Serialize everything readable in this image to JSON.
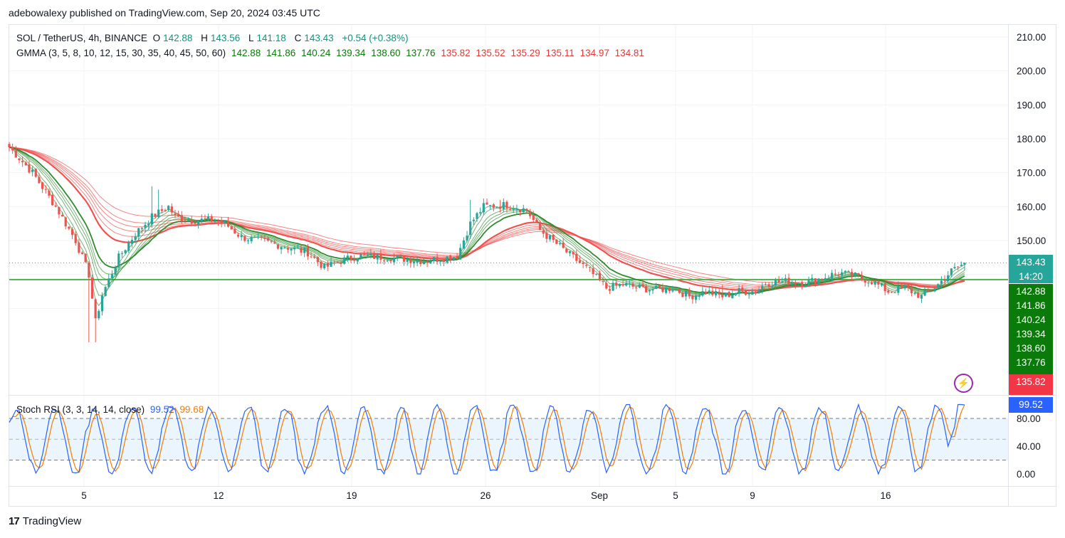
{
  "header": {
    "publish_line": "adebowalexy published on TradingView.com, Sep 20, 2024 03:45 UTC"
  },
  "legend": {
    "symbol_line": {
      "symbol": "SOL / TetherUS, 4h, BINANCE",
      "open_label": "O",
      "open": "142.88",
      "high_label": "H",
      "high": "143.56",
      "low_label": "L",
      "low": "141.18",
      "close_label": "C",
      "close": "143.43",
      "change": "+0.54 (+0.38%)"
    },
    "gmma_line": {
      "name": "GMMA (3, 5, 8, 10, 12, 15, 30, 35, 40, 45, 50, 60)",
      "short_values": [
        "142.88",
        "141.86",
        "140.24",
        "139.34",
        "138.60",
        "137.76"
      ],
      "long_values": [
        "135.82",
        "135.52",
        "135.29",
        "135.11",
        "134.97",
        "134.81"
      ]
    },
    "stoch_line": {
      "name": "Stoch RSI (3, 3, 14, 14, close)",
      "k": "99.52",
      "d": "99.68"
    }
  },
  "colors": {
    "up": "#26a69a",
    "down": "#ef5350",
    "gmma_short": "#2e8b2e",
    "gmma_long": "#ef5350",
    "support": "#4caf50",
    "k_line": "#2962ff",
    "d_line": "#f57c00",
    "price_badge": "#26a69a",
    "short_badge": "#0a7a0a",
    "long_badge": "#f23645"
  },
  "badges": {
    "last_price": "143.43",
    "countdown": "14:20",
    "short": [
      "142.88",
      "141.86",
      "140.24",
      "139.34",
      "138.60",
      "137.76"
    ],
    "long": [
      "135.82",
      "135.52"
    ],
    "stoch_k": "99.52"
  },
  "footer": {
    "brand": "TradingView",
    "logo_mark": "17"
  },
  "chart_data": [
    {
      "type": "candlestick",
      "title": "SOL / TetherUS, 4h, BINANCE",
      "y_ticks": [
        "210.00",
        "200.00",
        "190.00",
        "180.00",
        "170.00",
        "160.00",
        "150.00"
      ],
      "ylim": [
        118,
        214
      ],
      "x_ticks": [
        "5",
        "12",
        "19",
        "26",
        "Sep",
        "5",
        "9",
        "16"
      ],
      "grid": true,
      "support_level": 138.5,
      "close_path": [
        [
          0,
          177.5
        ],
        [
          7,
          170
        ],
        [
          14,
          160
        ],
        [
          20,
          150
        ],
        [
          24,
          140
        ],
        [
          26,
          126
        ],
        [
          28,
          134
        ],
        [
          33,
          145
        ],
        [
          38,
          152
        ],
        [
          43,
          157
        ],
        [
          48,
          160
        ],
        [
          50,
          157
        ],
        [
          55,
          156
        ],
        [
          62,
          156
        ],
        [
          65,
          155
        ],
        [
          70,
          151
        ],
        [
          80,
          149
        ],
        [
          90,
          146.5
        ],
        [
          95,
          142
        ],
        [
          100,
          144
        ],
        [
          105,
          145.5
        ],
        [
          115,
          145
        ],
        [
          125,
          144
        ],
        [
          135,
          145.5
        ],
        [
          139,
          155
        ],
        [
          143,
          160
        ],
        [
          150,
          160.5
        ],
        [
          156,
          159
        ],
        [
          160,
          153
        ],
        [
          165,
          149
        ],
        [
          170,
          145
        ],
        [
          175,
          141
        ],
        [
          180,
          136
        ],
        [
          185,
          137
        ],
        [
          190,
          136
        ],
        [
          195,
          135.5
        ],
        [
          200,
          136
        ],
        [
          205,
          133.5
        ],
        [
          210,
          135
        ],
        [
          215,
          133.5
        ],
        [
          220,
          135
        ],
        [
          225,
          135
        ],
        [
          228,
          137.5
        ],
        [
          235,
          138
        ],
        [
          240,
          137.5
        ],
        [
          245,
          139
        ],
        [
          250,
          140.5
        ],
        [
          255,
          139.5
        ],
        [
          260,
          138
        ],
        [
          265,
          135
        ],
        [
          270,
          136
        ],
        [
          275,
          133.5
        ],
        [
          280,
          137
        ],
        [
          284,
          141
        ],
        [
          288,
          143.43
        ]
      ],
      "gmma_short": [
        142.88,
        141.86,
        140.24,
        139.34,
        138.6,
        137.76
      ],
      "gmma_long": [
        135.82,
        135.52,
        135.29,
        135.11,
        134.97,
        134.81
      ]
    },
    {
      "type": "line",
      "title": "Stoch RSI (3, 3, 14, 14, close)",
      "y_ticks": [
        "80.00",
        "40.00",
        "0.00"
      ],
      "ylim": [
        -6,
        102
      ],
      "bands": [
        20,
        50,
        80
      ],
      "series": [
        {
          "name": "K",
          "last": 99.52
        },
        {
          "name": "D",
          "last": 99.68
        }
      ]
    }
  ]
}
